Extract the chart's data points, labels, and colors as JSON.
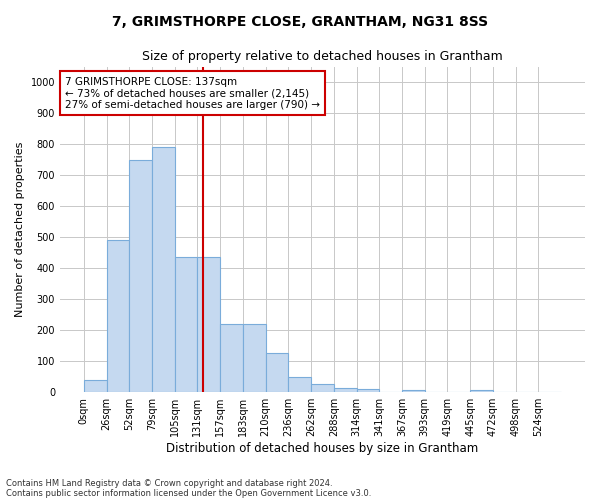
{
  "title": "7, GRIMSTHORPE CLOSE, GRANTHAM, NG31 8SS",
  "subtitle": "Size of property relative to detached houses in Grantham",
  "xlabel": "Distribution of detached houses by size in Grantham",
  "ylabel": "Number of detached properties",
  "bin_labels": [
    "0sqm",
    "26sqm",
    "52sqm",
    "79sqm",
    "105sqm",
    "131sqm",
    "157sqm",
    "183sqm",
    "210sqm",
    "236sqm",
    "262sqm",
    "288sqm",
    "314sqm",
    "341sqm",
    "367sqm",
    "393sqm",
    "419sqm",
    "445sqm",
    "472sqm",
    "498sqm",
    "524sqm"
  ],
  "bar_heights": [
    40,
    490,
    750,
    790,
    435,
    435,
    220,
    220,
    125,
    50,
    25,
    12,
    10,
    0,
    8,
    0,
    0,
    8,
    0,
    0,
    0
  ],
  "bar_color": "#c5d9f0",
  "bar_edge_color": "#7aacda",
  "vline_color": "#cc0000",
  "annotation_text": "7 GRIMSTHORPE CLOSE: 137sqm\n← 73% of detached houses are smaller (2,145)\n27% of semi-detached houses are larger (790) →",
  "annotation_box_color": "#ffffff",
  "annotation_box_edge": "#cc0000",
  "ylim": [
    0,
    1050
  ],
  "footnote1": "Contains HM Land Registry data © Crown copyright and database right 2024.",
  "footnote2": "Contains public sector information licensed under the Open Government Licence v3.0.",
  "background_color": "#ffffff",
  "grid_color": "#c8c8c8",
  "title_fontsize": 10,
  "subtitle_fontsize": 9,
  "ylabel_fontsize": 8,
  "xlabel_fontsize": 8.5,
  "tick_fontsize": 7,
  "annotation_fontsize": 7.5,
  "footnote_fontsize": 6
}
